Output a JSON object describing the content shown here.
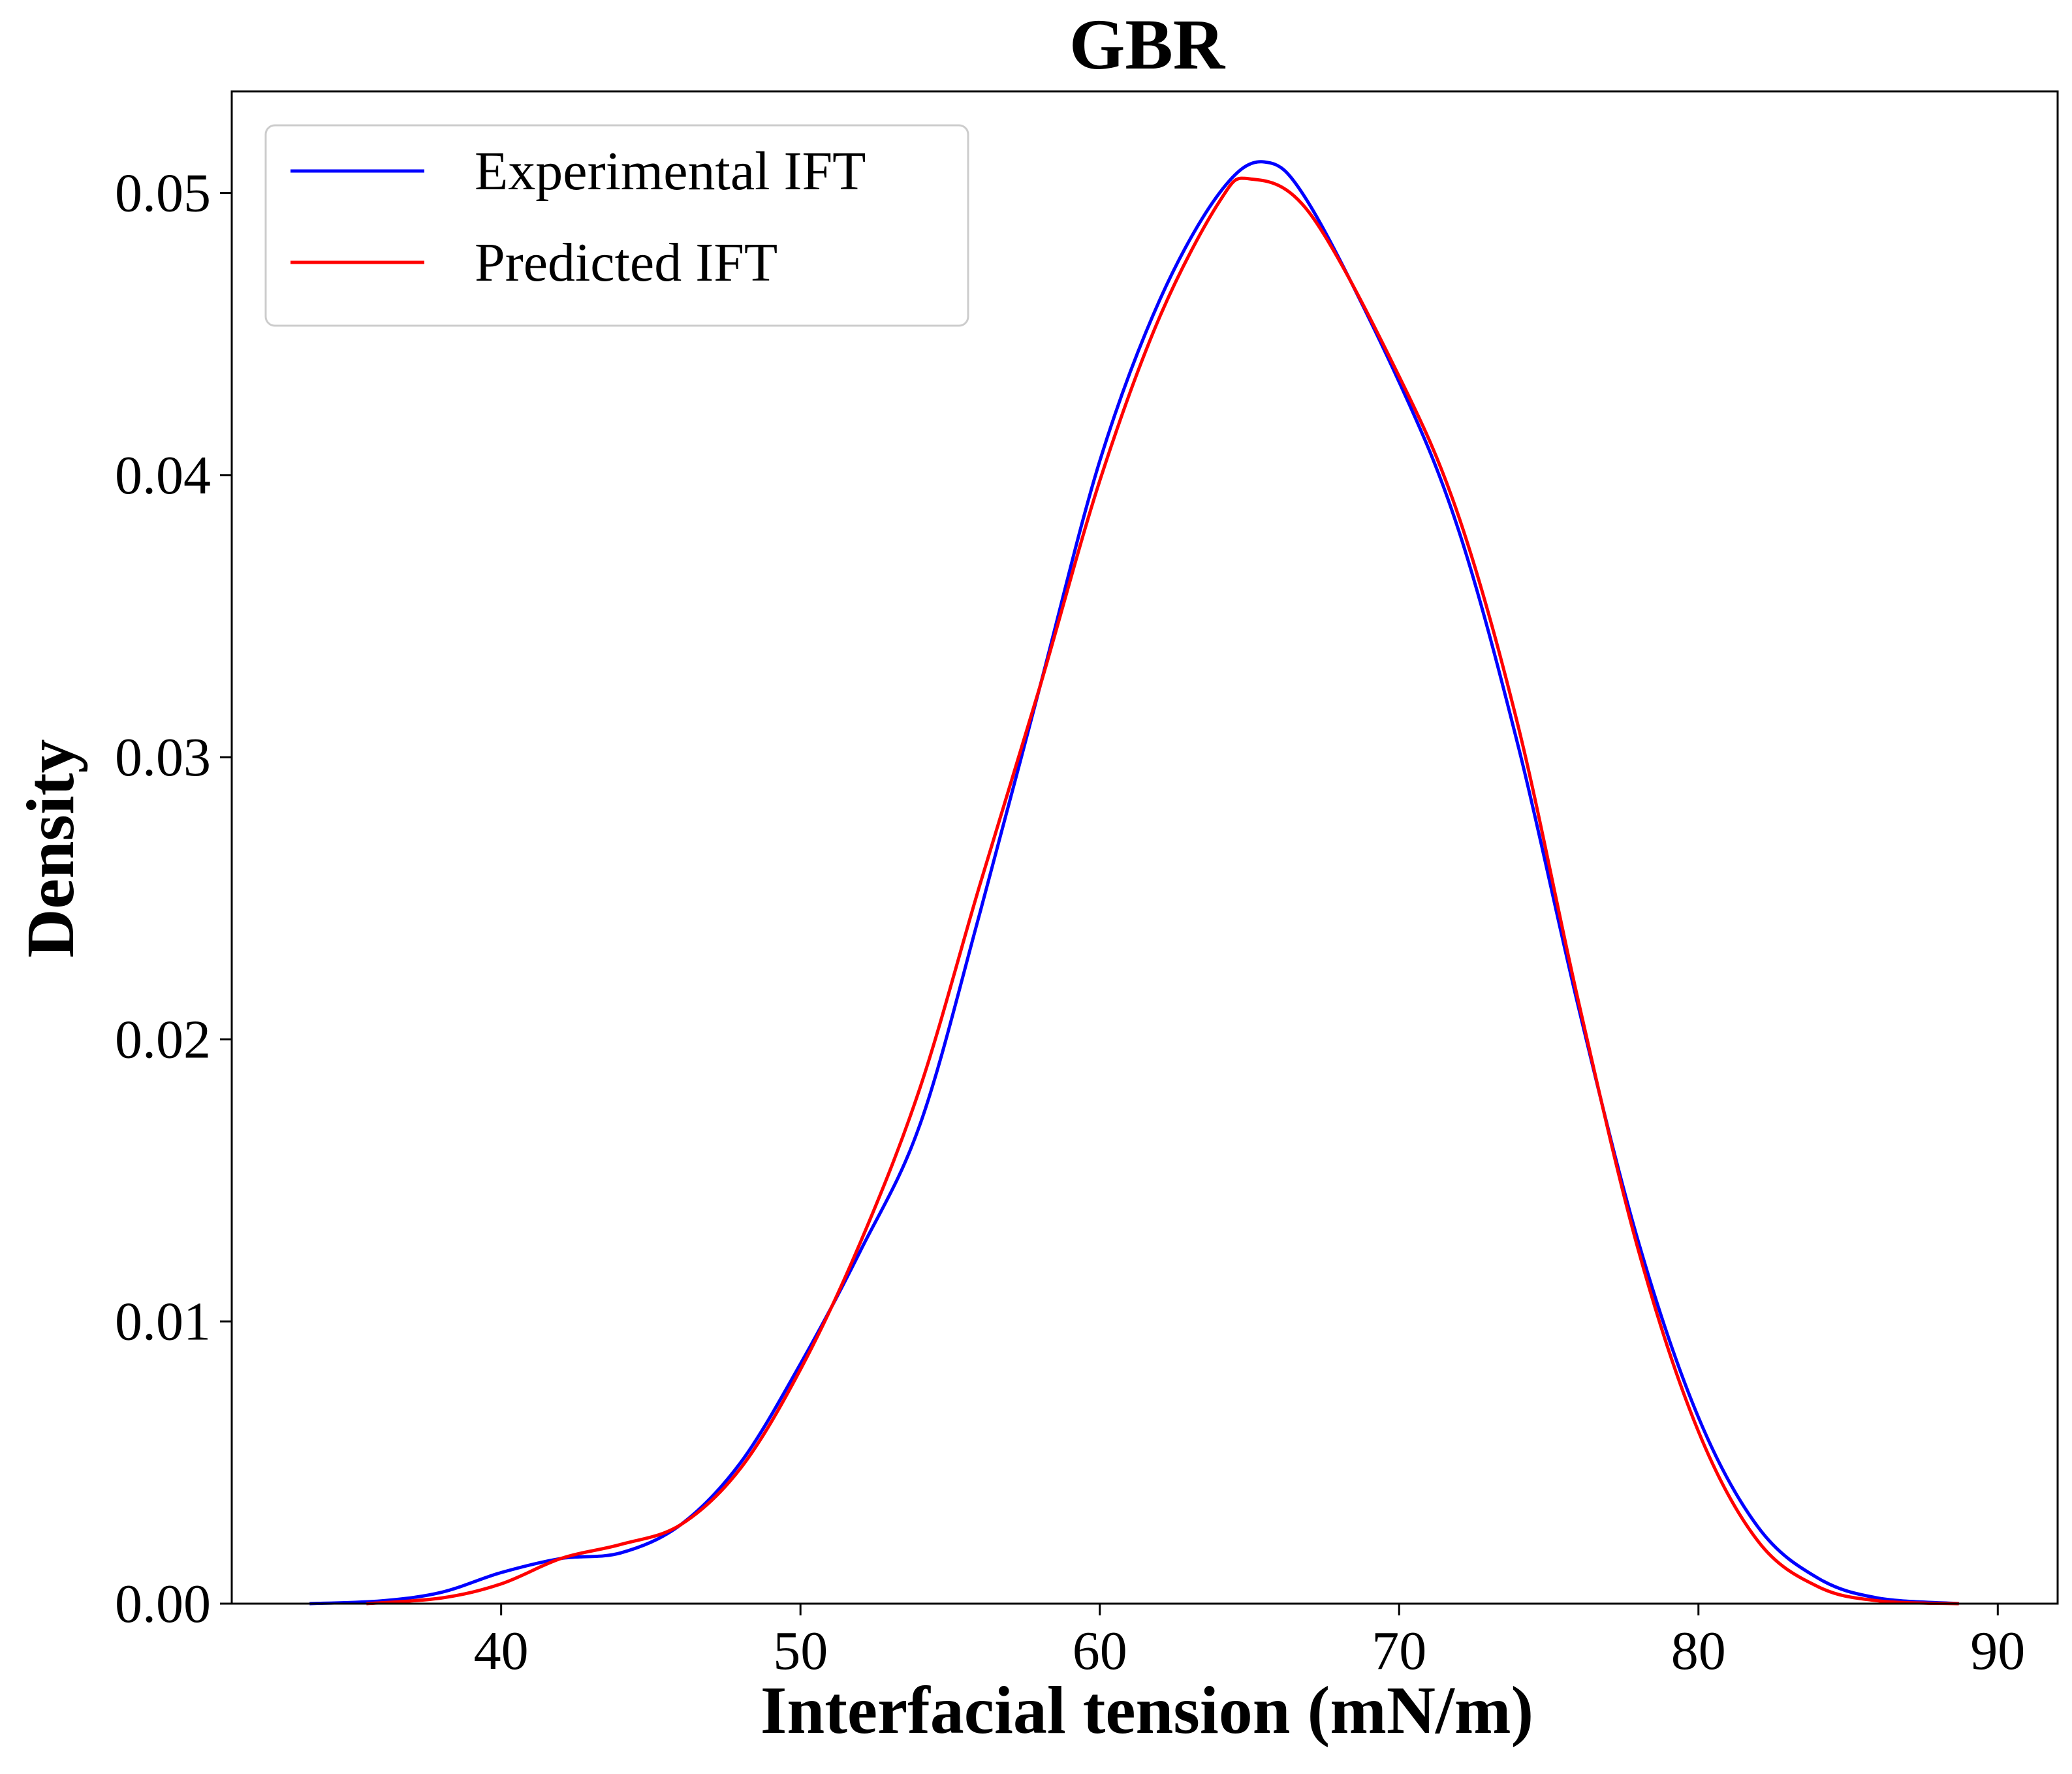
{
  "chart_data": {
    "type": "line",
    "title": "GBR",
    "xlabel": "Interfacial tension (mN/m)",
    "ylabel": "Density",
    "xlim": [
      31,
      92
    ],
    "ylim": [
      0,
      0.0536
    ],
    "xticks": [
      40,
      50,
      60,
      70,
      80,
      90
    ],
    "yticks": [
      0.0,
      0.01,
      0.02,
      0.03,
      0.04,
      0.05
    ],
    "ytick_decimals": 2,
    "grid": false,
    "legend_position": "top-left",
    "series": [
      {
        "name": "Experimental IFT",
        "color": "#0000ff",
        "points": [
          [
            33.6,
            0.0
          ],
          [
            36,
            0.0001
          ],
          [
            38,
            0.0004
          ],
          [
            40,
            0.0011
          ],
          [
            42,
            0.0016
          ],
          [
            44,
            0.0018
          ],
          [
            46,
            0.0028
          ],
          [
            48,
            0.005
          ],
          [
            50,
            0.0085
          ],
          [
            52,
            0.0125
          ],
          [
            54,
            0.017
          ],
          [
            56,
            0.0245
          ],
          [
            58,
            0.0325
          ],
          [
            60,
            0.0405
          ],
          [
            62,
            0.0462
          ],
          [
            64,
            0.05
          ],
          [
            65.5,
            0.0511
          ],
          [
            67,
            0.0496
          ],
          [
            70,
            0.0433
          ],
          [
            72,
            0.038
          ],
          [
            74,
            0.0303
          ],
          [
            76,
            0.0211
          ],
          [
            78,
            0.0128
          ],
          [
            80,
            0.0066
          ],
          [
            82,
            0.0027
          ],
          [
            84,
            0.0009
          ],
          [
            86,
            0.0002
          ],
          [
            88.7,
            0.0
          ]
        ]
      },
      {
        "name": "Predicted IFT",
        "color": "#ff0000",
        "points": [
          [
            35.5,
            0.0
          ],
          [
            38,
            0.0002
          ],
          [
            40,
            0.0007
          ],
          [
            42,
            0.0016
          ],
          [
            44,
            0.0021
          ],
          [
            46,
            0.0028
          ],
          [
            48,
            0.0048
          ],
          [
            50,
            0.0083
          ],
          [
            52,
            0.0128
          ],
          [
            54,
            0.0183
          ],
          [
            56,
            0.0255
          ],
          [
            58,
            0.0325
          ],
          [
            60,
            0.0398
          ],
          [
            62,
            0.0456
          ],
          [
            64,
            0.0497
          ],
          [
            65,
            0.0505
          ],
          [
            67,
            0.0493
          ],
          [
            70,
            0.0435
          ],
          [
            72,
            0.0385
          ],
          [
            74,
            0.031
          ],
          [
            76,
            0.0213
          ],
          [
            78,
            0.0125
          ],
          [
            80,
            0.0061
          ],
          [
            82,
            0.0022
          ],
          [
            84,
            0.0006
          ],
          [
            86,
            0.0001
          ],
          [
            88.7,
            0.0
          ]
        ]
      }
    ]
  }
}
